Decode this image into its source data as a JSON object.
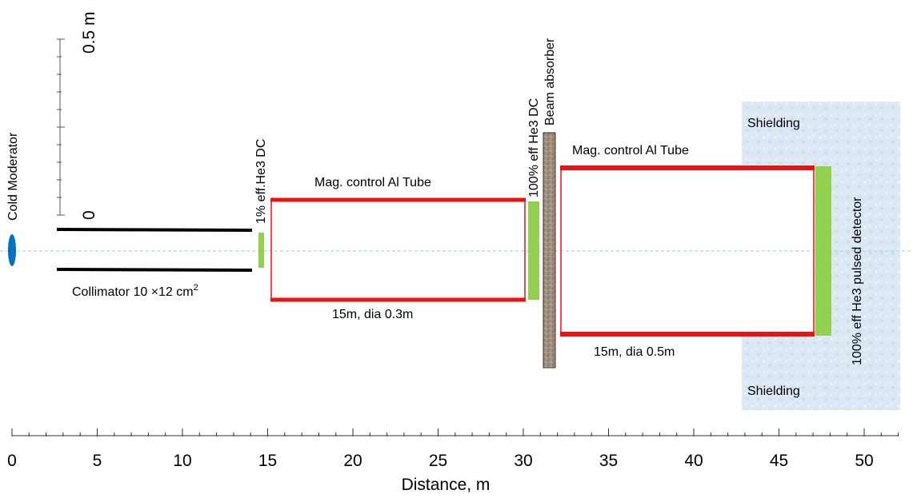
{
  "labels": {
    "cold_moderator": "Cold Moderator",
    "collimator": "Collimator 10 ×12 cm",
    "collimator_sup": "2",
    "detector_1pct": "1% eff.He3 DC",
    "tube1_title": "Mag. control Al Tube",
    "tube1_dims": "15m, dia 0.3m",
    "detector_100pct": "100% eff He3 DC",
    "beam_absorber": "Beam absorber",
    "tube2_title": "Mag. control Al Tube",
    "tube2_dims": "15m, dia 0.5m",
    "shielding_top": "Shielding",
    "shielding_bottom": "Shielding",
    "pulsed_detector": "100% eff He3 pulsed detector"
  },
  "vertical_scale": {
    "top_label": "0.5 m",
    "bottom_label": "0"
  },
  "distance_axis": {
    "title": "Distance, m",
    "min": 0,
    "max": 52,
    "tick_labels": [
      "0",
      "5",
      "10",
      "15",
      "20",
      "25",
      "30",
      "35",
      "40",
      "45",
      "50"
    ]
  },
  "colors": {
    "tube": "#ee1111",
    "detector": "#92d050",
    "moderator": "#0070c0",
    "beam_line": "#8fd0e8",
    "shielding": "#dce9f5",
    "absorber": "#a08f7e"
  }
}
